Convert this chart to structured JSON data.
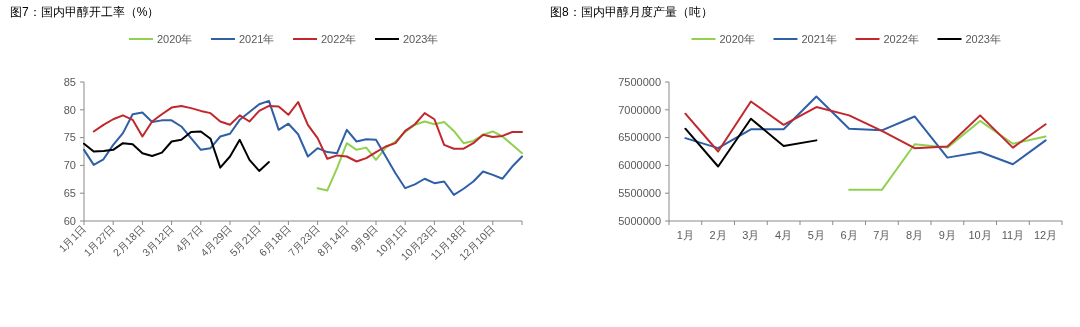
{
  "chart_data": [
    {
      "type": "line",
      "title": "图7：国内甲醇开工率（%）",
      "categories": [
        "1月1日",
        null,
        null,
        "1月27日",
        null,
        null,
        "2月18日",
        null,
        null,
        "3月12日",
        null,
        null,
        "4月7日",
        null,
        null,
        "4月29日",
        null,
        null,
        "5月21日",
        null,
        null,
        "6月18日",
        null,
        null,
        "7月23日",
        null,
        null,
        "8月14日",
        null,
        null,
        "9月9日",
        null,
        null,
        "10月1日",
        null,
        null,
        "10月23日",
        null,
        null,
        "11月18日",
        null,
        null,
        "12月10日",
        null,
        null,
        null
      ],
      "ylim": [
        60,
        85
      ],
      "yticks": [
        60,
        65,
        70,
        75,
        80,
        85
      ],
      "grid": false,
      "legend": "top",
      "marker": "none",
      "series": [
        {
          "name": "2020年",
          "color": "#92d050",
          "values": [
            null,
            null,
            null,
            null,
            null,
            null,
            null,
            null,
            null,
            null,
            null,
            null,
            null,
            null,
            null,
            null,
            null,
            null,
            null,
            null,
            null,
            null,
            null,
            null,
            65.9,
            65.5,
            69.5,
            74,
            72.8,
            73.2,
            71,
            73.2,
            74.3,
            76,
            77.3,
            77.9,
            77.4,
            77.8,
            76.2,
            74,
            74.4,
            75.5,
            76.1,
            75.2,
            73.7,
            72.2
          ]
        },
        {
          "name": "2021年",
          "color": "#2f5fa7",
          "values": [
            72.8,
            70.1,
            71.1,
            73.7,
            75.8,
            79.2,
            79.5,
            77.8,
            78.1,
            78.1,
            77,
            74.9,
            72.8,
            73.1,
            75.2,
            75.7,
            78.2,
            79.6,
            81,
            81.6,
            76.4,
            77.5,
            75.6,
            71.6,
            73.1,
            72.4,
            72.2,
            76.4,
            74.3,
            74.7,
            74.6,
            71.6,
            68.6,
            65.9,
            66.6,
            67.6,
            66.8,
            67.1,
            64.7,
            65.8,
            67.1,
            68.9,
            68.3,
            67.6,
            69.8,
            71.6
          ]
        },
        {
          "name": "2022年",
          "color": "#c0282e",
          "values": [
            null,
            76.1,
            77.3,
            78.3,
            79,
            78.2,
            75.2,
            77.9,
            79.2,
            80.4,
            80.7,
            80.3,
            79.8,
            79.4,
            77.9,
            77.3,
            79,
            77.9,
            79.8,
            80.7,
            80.6,
            79.1,
            81.4,
            77.3,
            74.9,
            71.2,
            71.8,
            71.6,
            70.7,
            71.3,
            72.4,
            73.4,
            74,
            76.2,
            77.4,
            79.4,
            78.3,
            73.7,
            73,
            73,
            74,
            75.5,
            75.1,
            75.3,
            76,
            76
          ]
        },
        {
          "name": "2023年",
          "color": "#000000",
          "values": [
            73.9,
            72.5,
            72.6,
            72.8,
            74,
            73.8,
            72.2,
            71.7,
            72.3,
            74.3,
            74.6,
            76,
            76.1,
            74.8,
            69.6,
            71.6,
            74.6,
            71,
            69,
            70.6,
            null,
            null,
            null,
            null,
            null,
            null,
            null,
            null,
            null,
            null,
            null,
            null,
            null,
            null,
            null,
            null,
            null,
            null,
            null,
            null,
            null,
            null,
            null,
            null,
            null,
            null
          ]
        }
      ]
    },
    {
      "type": "line",
      "title": "图8：国内甲醇月度产量（吨）",
      "categories": [
        "1月",
        "2月",
        "3月",
        "4月",
        "5月",
        "6月",
        "7月",
        "8月",
        "9月",
        "10月",
        "11月",
        "12月"
      ],
      "ylim": [
        5000000,
        7500000
      ],
      "yticks": [
        5000000,
        5500000,
        6000000,
        6500000,
        7000000,
        7500000
      ],
      "grid": false,
      "legend": "top",
      "marker": "none",
      "series": [
        {
          "name": "2020年",
          "color": "#92d050",
          "values": [
            null,
            null,
            null,
            null,
            null,
            5560000,
            5560000,
            6380000,
            6320000,
            6800000,
            6390000,
            6520000
          ]
        },
        {
          "name": "2021年",
          "color": "#2f5fa7",
          "values": [
            6490000,
            6310000,
            6650000,
            6650000,
            7240000,
            6660000,
            6630000,
            6880000,
            6140000,
            6240000,
            6020000,
            6450000
          ]
        },
        {
          "name": "2022年",
          "color": "#c0282e",
          "values": [
            6930000,
            6250000,
            7150000,
            6730000,
            7050000,
            6900000,
            6620000,
            6310000,
            6340000,
            6900000,
            6320000,
            6740000
          ]
        },
        {
          "name": "2023年",
          "color": "#000000",
          "values": [
            6660000,
            5980000,
            6840000,
            6350000,
            6450000,
            null,
            null,
            null,
            null,
            null,
            null,
            null
          ]
        }
      ]
    }
  ]
}
